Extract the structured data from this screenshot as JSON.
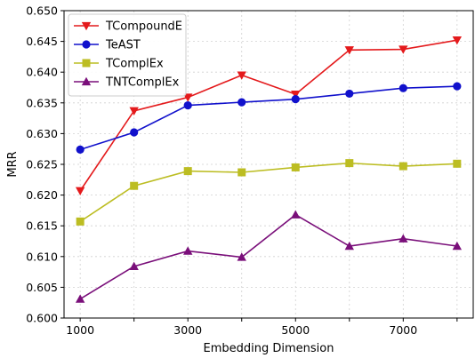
{
  "chart_data": {
    "type": "line",
    "title": "",
    "xlabel": "Embedding Dimension",
    "ylabel": "MRR",
    "x": [
      1000,
      2000,
      3000,
      4000,
      5000,
      6000,
      7000,
      8000
    ],
    "xlim": [
      700,
      8300
    ],
    "ylim": [
      0.6,
      0.65
    ],
    "xticks": [
      1000,
      3000,
      5000,
      7000
    ],
    "xtick_labels": [
      "1000",
      "3000",
      "5000",
      "7000"
    ],
    "yticks": [
      0.6,
      0.605,
      0.61,
      0.615,
      0.62,
      0.625,
      0.63,
      0.635,
      0.64,
      0.645,
      0.65
    ],
    "ytick_labels": [
      "0.600",
      "0.605",
      "0.610",
      "0.615",
      "0.620",
      "0.625",
      "0.630",
      "0.635",
      "0.640",
      "0.645",
      "0.650"
    ],
    "grid": true,
    "legend_position": "top-left",
    "series": [
      {
        "name": "TCompoundE",
        "color": "#e41a1c",
        "marker": "triangle-down",
        "values": [
          0.6207,
          0.6337,
          0.6359,
          0.6395,
          0.6364,
          0.6436,
          0.6437,
          0.6452
        ]
      },
      {
        "name": "TeAST",
        "color": "#1111cc",
        "marker": "circle",
        "values": [
          0.6274,
          0.6302,
          0.6346,
          0.6351,
          0.6356,
          0.6365,
          0.6374,
          0.6377
        ]
      },
      {
        "name": "TComplEx",
        "color": "#bcbd22",
        "marker": "square",
        "values": [
          0.6157,
          0.6215,
          0.6239,
          0.6237,
          0.6245,
          0.6252,
          0.6247,
          0.6251
        ]
      },
      {
        "name": "TNTComplEx",
        "color": "#7a0f7a",
        "marker": "triangle-up",
        "values": [
          0.6031,
          0.6084,
          0.6109,
          0.6099,
          0.6168,
          0.6117,
          0.6129,
          0.6117
        ]
      }
    ]
  }
}
